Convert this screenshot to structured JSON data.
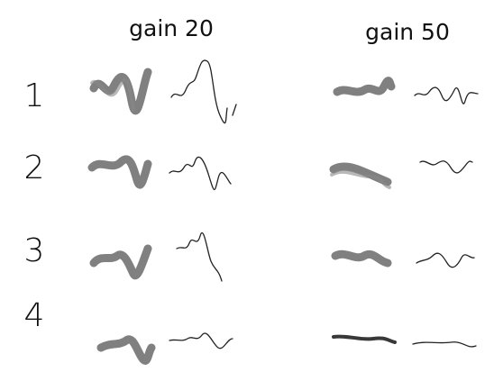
{
  "columns": [
    "gain 20",
    "gain 50"
  ],
  "rows": [
    "1",
    "2",
    "3",
    "4"
  ]
}
